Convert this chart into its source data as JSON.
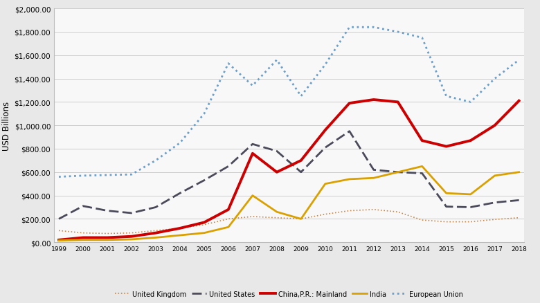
{
  "years": [
    1999,
    2000,
    2001,
    2002,
    2003,
    2004,
    2005,
    2006,
    2007,
    2008,
    2009,
    2010,
    2011,
    2012,
    2013,
    2014,
    2015,
    2016,
    2017,
    2018
  ],
  "united_kingdom": [
    100,
    80,
    75,
    80,
    100,
    120,
    150,
    200,
    220,
    210,
    200,
    240,
    270,
    280,
    260,
    190,
    175,
    175,
    195,
    210
  ],
  "united_states": [
    200,
    310,
    270,
    250,
    300,
    420,
    530,
    650,
    840,
    780,
    600,
    810,
    950,
    620,
    600,
    590,
    305,
    300,
    340,
    360
  ],
  "china_mainland": [
    20,
    40,
    40,
    50,
    80,
    120,
    170,
    280,
    760,
    600,
    700,
    960,
    1190,
    1220,
    1200,
    870,
    820,
    870,
    1000,
    1210
  ],
  "india": [
    15,
    20,
    20,
    25,
    40,
    60,
    80,
    130,
    400,
    260,
    200,
    500,
    540,
    550,
    600,
    650,
    420,
    410,
    570,
    600
  ],
  "european_union": [
    560,
    570,
    575,
    580,
    700,
    850,
    1100,
    1530,
    1340,
    1560,
    1250,
    1520,
    1840,
    1840,
    1800,
    1750,
    1250,
    1200,
    1400,
    1560
  ],
  "uk_color": "#C8874A",
  "us_color": "#4A4A5A",
  "cn_color": "#CC0000",
  "in_color": "#DAA000",
  "eu_color": "#6B9EC8",
  "ylabel": "USD Billions",
  "ylim": [
    0,
    2000
  ],
  "yticks": [
    0,
    200,
    400,
    600,
    800,
    1000,
    1200,
    1400,
    1600,
    1800,
    2000
  ],
  "bg_color": "#e8e8e8",
  "plot_bg": "#f8f8f8",
  "legend_labels": [
    "United Kingdom",
    "United States",
    "China,P.R.: Mainland",
    "India",
    "European Union"
  ]
}
